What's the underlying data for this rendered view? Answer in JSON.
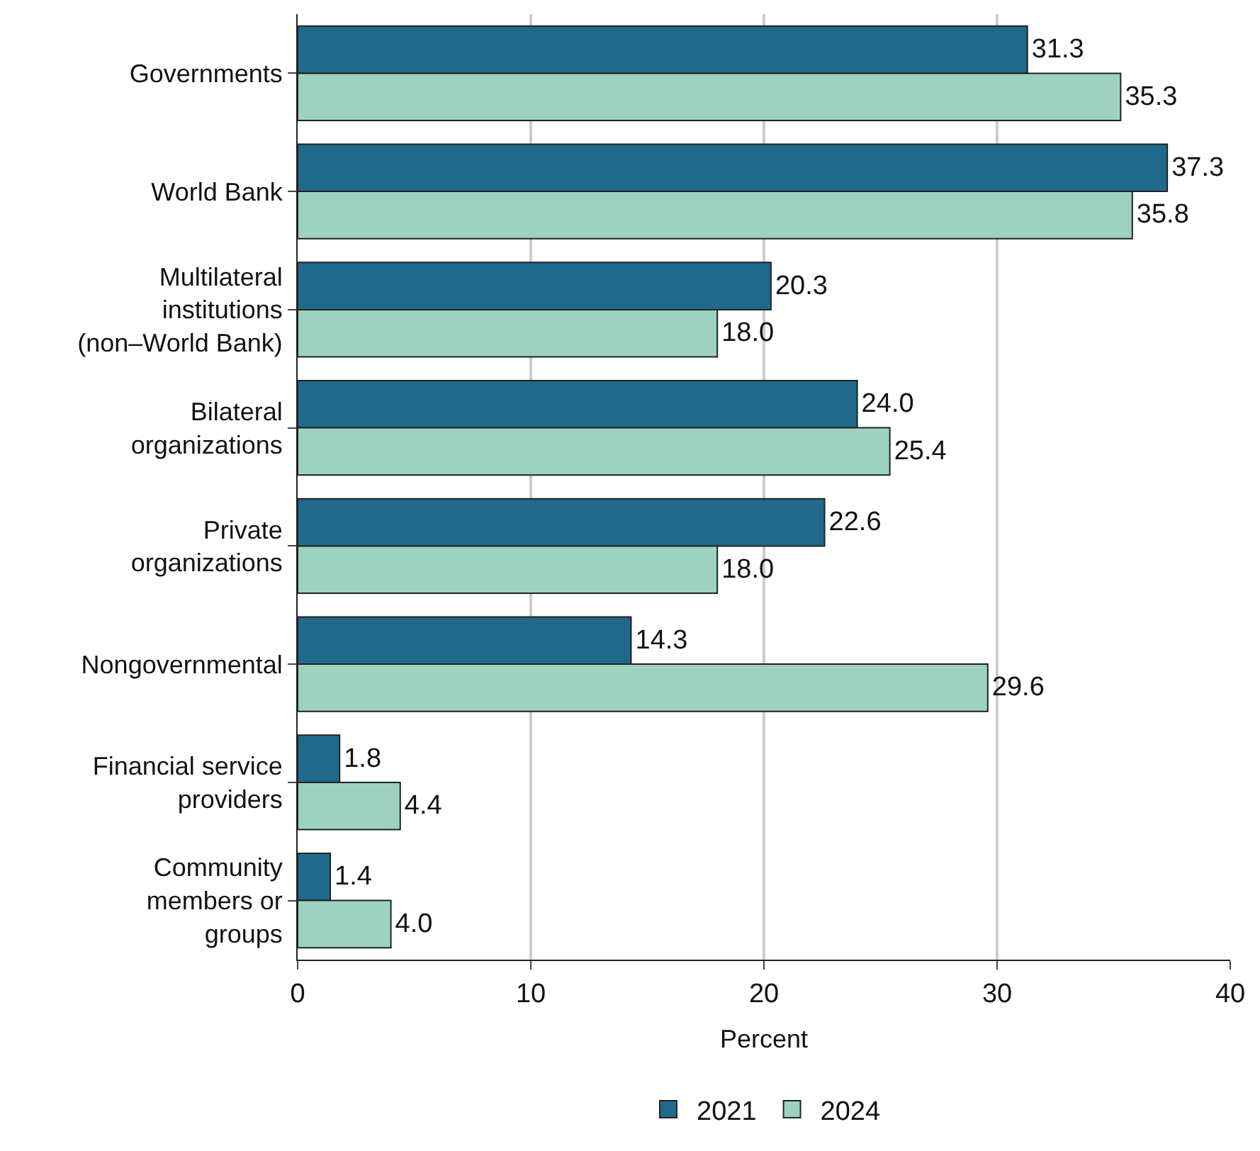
{
  "chart_data": {
    "type": "bar",
    "orientation": "horizontal",
    "xlabel": "Percent",
    "categories": [
      "Governments",
      "World Bank",
      "Multilateral\ninstitutions\n(non–World Bank)",
      "Bilateral\norganizations",
      "Private\norganizations",
      "Nongovernmental",
      "Financial service\nproviders",
      "Community\nmembers or\ngroups"
    ],
    "series": [
      {
        "name": "2021",
        "color": "#1f6a8a",
        "values": [
          31.3,
          37.3,
          20.3,
          24.0,
          22.6,
          14.3,
          1.8,
          1.4
        ],
        "value_labels": [
          "31.3",
          "37.3",
          "20.3",
          "24.0",
          "22.6",
          "14.3",
          "1.8",
          "1.4"
        ]
      },
      {
        "name": "2024",
        "color": "#9dd2c1",
        "values": [
          35.3,
          35.8,
          18.0,
          25.4,
          18.0,
          29.6,
          4.4,
          4.0
        ],
        "value_labels": [
          "35.3",
          "35.8",
          "18.0",
          "25.4",
          "18.0",
          "29.6",
          "4.4",
          "4.0"
        ]
      }
    ],
    "xlim": [
      0,
      40
    ],
    "xticks": [
      0,
      10,
      20,
      30,
      40
    ],
    "grid": "x",
    "legend": "bottom"
  }
}
